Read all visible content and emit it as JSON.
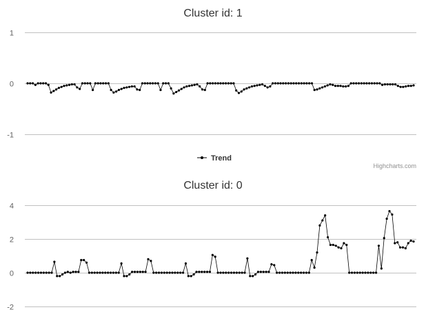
{
  "charts": [
    {
      "title": "Cluster id: 1",
      "legend_label": "Trend",
      "credits": "Highcharts.com"
    },
    {
      "title": "Cluster id: 0"
    }
  ],
  "chart_data": [
    {
      "type": "line",
      "title": "Cluster id: 1",
      "xlabel": "",
      "ylabel": "",
      "ylim": [
        -1,
        1
      ],
      "yticks": [
        -1,
        0,
        1
      ],
      "grid": true,
      "legend": "bottom-center",
      "marker": "circle",
      "line_color": "#000000",
      "grid_color": "#c0c0c0",
      "series": [
        {
          "name": "Trend",
          "values": [
            0,
            0,
            0,
            -0.03,
            0,
            0,
            0,
            0,
            -0.03,
            -0.18,
            -0.15,
            -0.12,
            -0.09,
            -0.07,
            -0.05,
            -0.04,
            -0.03,
            -0.02,
            -0.02,
            -0.08,
            -0.11,
            0,
            0,
            0,
            0,
            -0.13,
            0,
            0,
            0,
            0,
            0,
            0,
            -0.13,
            -0.18,
            -0.16,
            -0.13,
            -0.11,
            -0.09,
            -0.08,
            -0.07,
            -0.06,
            -0.06,
            -0.12,
            -0.13,
            0,
            0,
            0,
            0,
            0,
            0,
            0,
            -0.13,
            0,
            0,
            0,
            -0.1,
            -0.2,
            -0.17,
            -0.14,
            -0.11,
            -0.08,
            -0.06,
            -0.05,
            -0.04,
            -0.03,
            -0.02,
            -0.06,
            -0.12,
            -0.13,
            0,
            0,
            0,
            0,
            0,
            0,
            0,
            0,
            0,
            0,
            0,
            -0.14,
            -0.19,
            -0.16,
            -0.12,
            -0.1,
            -0.08,
            -0.06,
            -0.05,
            -0.04,
            -0.03,
            -0.02,
            -0.05,
            -0.08,
            -0.06,
            0,
            0,
            0,
            0,
            0,
            0,
            0,
            0,
            0,
            0,
            0,
            0,
            0,
            0,
            0,
            0,
            -0.13,
            -0.12,
            -0.1,
            -0.08,
            -0.06,
            -0.04,
            -0.02,
            -0.03,
            -0.05,
            -0.05,
            -0.05,
            -0.06,
            -0.06,
            -0.05,
            0,
            0,
            0,
            0,
            0,
            0,
            0,
            0,
            0,
            0,
            0,
            0,
            -0.03,
            -0.02,
            -0.02,
            -0.02,
            -0.02,
            -0.02,
            -0.05,
            -0.07,
            -0.07,
            -0.06,
            -0.05,
            -0.05,
            -0.04
          ]
        }
      ]
    },
    {
      "type": "line",
      "title": "Cluster id: 0",
      "xlabel": "",
      "ylabel": "",
      "ylim": [
        -2,
        4
      ],
      "yticks": [
        -2,
        0,
        2,
        4
      ],
      "grid": true,
      "marker": "circle",
      "line_color": "#000000",
      "grid_color": "#c0c0c0",
      "series": [
        {
          "values": [
            0,
            0,
            0,
            0,
            0,
            0,
            0,
            0,
            0,
            0,
            0.65,
            -0.2,
            -0.2,
            -0.1,
            0,
            0.05,
            0,
            0.05,
            0.05,
            0.05,
            0.75,
            0.75,
            0.6,
            0,
            0,
            0,
            0,
            0,
            0,
            0,
            0,
            0,
            0,
            0,
            0,
            0.55,
            -0.2,
            -0.2,
            -0.1,
            0.05,
            0.05,
            0.05,
            0.05,
            0.05,
            0.05,
            0.8,
            0.7,
            0,
            0,
            0,
            0,
            0,
            0,
            0,
            0,
            0,
            0,
            0,
            0,
            0.55,
            -0.2,
            -0.2,
            -0.1,
            0.05,
            0.05,
            0.05,
            0.05,
            0.05,
            0.05,
            1.05,
            0.95,
            0,
            0,
            0,
            0,
            0,
            0,
            0,
            0,
            0,
            0,
            0,
            0.85,
            -0.2,
            -0.2,
            -0.1,
            0.05,
            0.05,
            0.05,
            0.05,
            0.05,
            0.5,
            0.45,
            0,
            0,
            0,
            0,
            0,
            0,
            0,
            0,
            0,
            0,
            0,
            0,
            0,
            0.75,
            0.3,
            1.2,
            2.8,
            3.1,
            3.4,
            2.1,
            1.65,
            1.65,
            1.6,
            1.5,
            1.45,
            1.75,
            1.65,
            0,
            0,
            0,
            0,
            0,
            0,
            0,
            0,
            0,
            0,
            0,
            1.6,
            0.25,
            2.05,
            3.2,
            3.65,
            3.45,
            1.75,
            1.8,
            1.5,
            1.5,
            1.45,
            1.75,
            1.9,
            1.85
          ]
        }
      ]
    }
  ]
}
